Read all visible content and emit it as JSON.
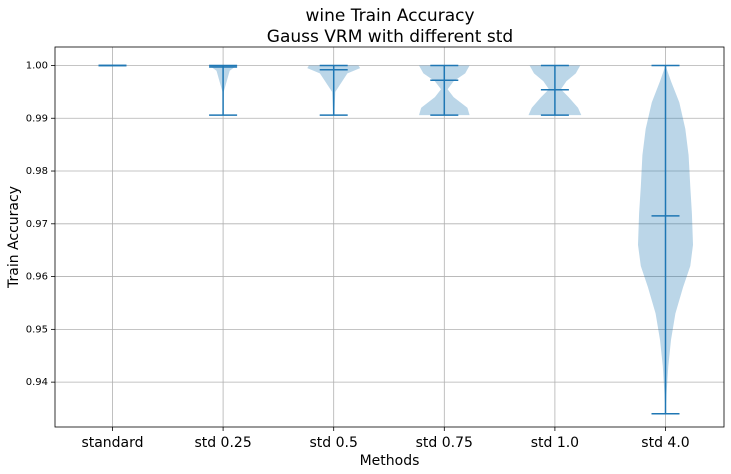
{
  "chart_data": {
    "type": "violin",
    "title": [
      "wine Train Accuracy",
      "Gauss VRM with different std"
    ],
    "xlabel": "Methods",
    "ylabel": "Train Accuracy",
    "ylim": [
      0.9315,
      1.0035
    ],
    "yticks": [
      0.94,
      0.95,
      0.96,
      0.97,
      0.98,
      0.99,
      1.0
    ],
    "ytick_labels": [
      "0.94",
      "0.95",
      "0.96",
      "0.97",
      "0.98",
      "0.99",
      "1.00"
    ],
    "grid": true,
    "categories": [
      "standard",
      "std 0.25",
      "std 0.5",
      "std 0.75",
      "std 1.0",
      "std 4.0"
    ],
    "stats": [
      {
        "min": 1.0,
        "mean": 1.0,
        "max": 1.0
      },
      {
        "min": 0.9906,
        "mean": 0.9997,
        "max": 1.0
      },
      {
        "min": 0.9906,
        "mean": 0.9992,
        "max": 1.0
      },
      {
        "min": 0.9906,
        "mean": 0.9972,
        "max": 1.0
      },
      {
        "min": 0.9906,
        "mean": 0.9954,
        "max": 1.0
      },
      {
        "min": 0.934,
        "mean": 0.9715,
        "max": 1.0
      }
    ],
    "densities": [
      [],
      [
        [
          0.9906,
          0.0
        ],
        [
          0.995,
          0.01
        ],
        [
          0.999,
          0.12
        ],
        [
          1.0,
          0.25
        ]
      ],
      [
        [
          0.9906,
          0.01
        ],
        [
          0.995,
          0.03
        ],
        [
          0.9985,
          0.25
        ],
        [
          0.9995,
          0.48
        ],
        [
          1.0,
          0.45
        ]
      ],
      [
        [
          0.9906,
          0.46
        ],
        [
          0.992,
          0.42
        ],
        [
          0.994,
          0.17
        ],
        [
          0.9955,
          0.06
        ],
        [
          0.997,
          0.17
        ],
        [
          0.9985,
          0.38
        ],
        [
          1.0,
          0.46
        ]
      ],
      [
        [
          0.9906,
          0.48
        ],
        [
          0.992,
          0.42
        ],
        [
          0.994,
          0.25
        ],
        [
          0.9955,
          0.11
        ],
        [
          0.997,
          0.21
        ],
        [
          0.9985,
          0.38
        ],
        [
          1.0,
          0.46
        ]
      ],
      [
        [
          0.934,
          0.0
        ],
        [
          0.938,
          0.02
        ],
        [
          0.943,
          0.05
        ],
        [
          0.948,
          0.1
        ],
        [
          0.953,
          0.18
        ],
        [
          0.958,
          0.32
        ],
        [
          0.962,
          0.45
        ],
        [
          0.966,
          0.5
        ],
        [
          0.972,
          0.48
        ],
        [
          0.977,
          0.45
        ],
        [
          0.983,
          0.42
        ],
        [
          0.988,
          0.36
        ],
        [
          0.993,
          0.25
        ],
        [
          0.997,
          0.1
        ],
        [
          1.0,
          0.0
        ]
      ]
    ]
  }
}
